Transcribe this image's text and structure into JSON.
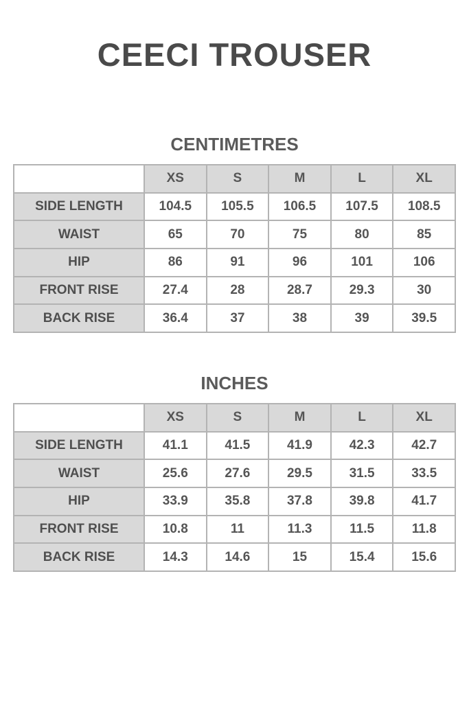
{
  "title": "CEECI TROUSER",
  "tables": [
    {
      "heading": "CENTIMETRES",
      "sizes": [
        "XS",
        "S",
        "M",
        "L",
        "XL"
      ],
      "rows": [
        {
          "label": "SIDE LENGTH",
          "values": [
            "104.5",
            "105.5",
            "106.5",
            "107.5",
            "108.5"
          ]
        },
        {
          "label": "WAIST",
          "values": [
            "65",
            "70",
            "75",
            "80",
            "85"
          ]
        },
        {
          "label": "HIP",
          "values": [
            "86",
            "91",
            "96",
            "101",
            "106"
          ]
        },
        {
          "label": "FRONT RISE",
          "values": [
            "27.4",
            "28",
            "28.7",
            "29.3",
            "30"
          ]
        },
        {
          "label": "BACK RISE",
          "values": [
            "36.4",
            "37",
            "38",
            "39",
            "39.5"
          ]
        }
      ]
    },
    {
      "heading": "INCHES",
      "sizes": [
        "XS",
        "S",
        "M",
        "L",
        "XL"
      ],
      "rows": [
        {
          "label": "SIDE LENGTH",
          "values": [
            "41.1",
            "41.5",
            "41.9",
            "42.3",
            "42.7"
          ]
        },
        {
          "label": "WAIST",
          "values": [
            "25.6",
            "27.6",
            "29.5",
            "31.5",
            "33.5"
          ]
        },
        {
          "label": "HIP",
          "values": [
            "33.9",
            "35.8",
            "37.8",
            "39.8",
            "41.7"
          ]
        },
        {
          "label": "FRONT RISE",
          "values": [
            "10.8",
            "11",
            "11.3",
            "11.5",
            "11.8"
          ]
        },
        {
          "label": "BACK RISE",
          "values": [
            "14.3",
            "14.6",
            "15",
            "15.4",
            "15.6"
          ]
        }
      ]
    }
  ]
}
